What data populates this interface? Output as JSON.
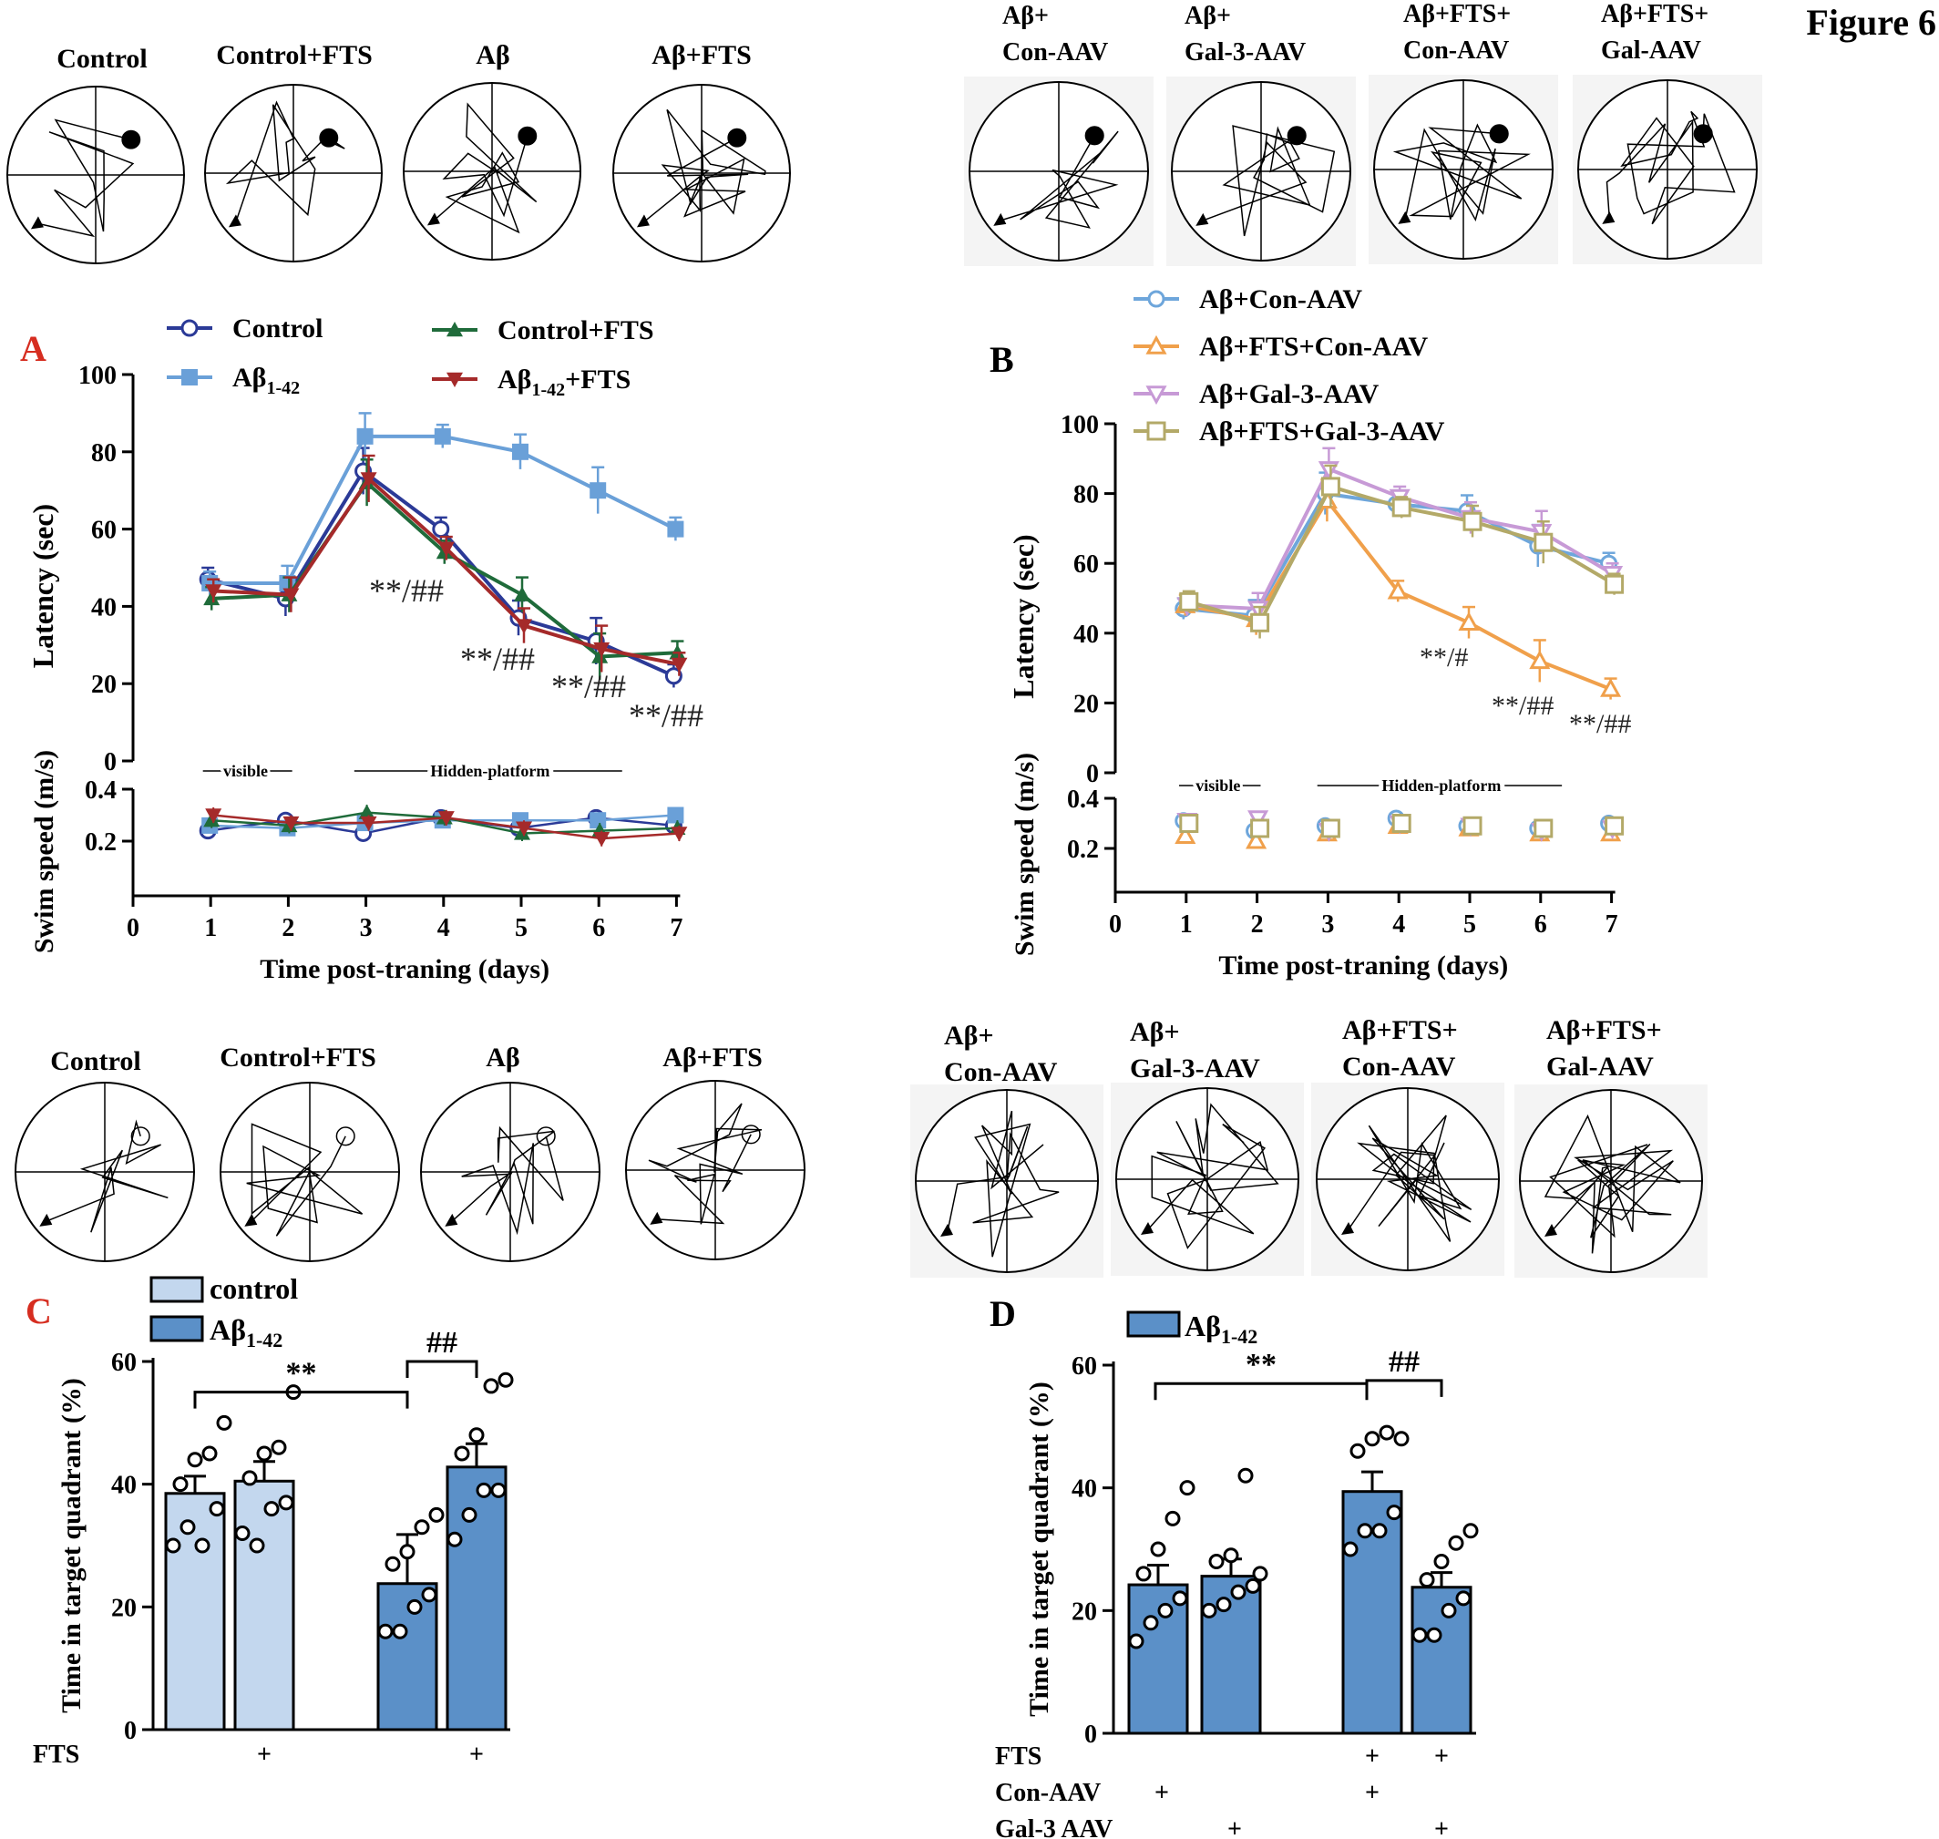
{
  "figure_label": "Figure 6",
  "colors": {
    "control": "#2b3a97",
    "abeta": "#6aa0d8",
    "control_fts": "#1f6b3a",
    "abeta_fts": "#a52a2a",
    "b_con": "#6ea6db",
    "b_fts_con": "#f0a04b",
    "b_gal3": "#c79ad6",
    "b_fts_gal3": "#b3a968",
    "bar_light": "#c3d7ee",
    "bar_dark": "#5b90c8",
    "letter_red": "#d62d20"
  },
  "top_left_mazes": {
    "labels": [
      "Control",
      "Control+FTS",
      "Aβ",
      "Aβ+FTS"
    ]
  },
  "top_right_mazes": {
    "labels_line1": [
      "Aβ+",
      "Aβ+",
      "Aβ+FTS+",
      "Aβ+FTS+"
    ],
    "labels_line2": [
      "Con-AAV",
      "Gal-3-AAV",
      "Con-AAV",
      "Gal-AAV"
    ]
  },
  "mid_left_mazes": {
    "labels": [
      "Control",
      "Control+FTS",
      "Aβ",
      "Aβ+FTS"
    ]
  },
  "mid_right_mazes": {
    "labels_line1": [
      "Aβ+",
      "Aβ+",
      "Aβ+FTS+",
      "Aβ+FTS+"
    ],
    "labels_line2": [
      "Con-AAV",
      "Gal-3-AAV",
      "Con-AAV",
      "Gal-AAV"
    ]
  },
  "panels": {
    "A": "A",
    "B": "B",
    "C": "C",
    "D": "D"
  },
  "chart_data": [
    {
      "id": "A",
      "type": "line",
      "xlabel": "Time post-traning (days)",
      "ylabel_top": "Latency (sec)",
      "ylabel_bottom": "Swim speed (m/s)",
      "x_ticks": [
        "0",
        "1",
        "2",
        "3",
        "4",
        "5",
        "6",
        "7"
      ],
      "ylim_top": [
        0,
        100
      ],
      "y_ticks_top": [
        "0",
        "20",
        "40",
        "60",
        "80",
        "100"
      ],
      "y_ticks_bottom": [
        "0.2",
        "0.4"
      ],
      "x": [
        1,
        2,
        3,
        4,
        5,
        6,
        7
      ],
      "legend": [
        "Control",
        "Aβ1-42",
        "Control+FTS",
        "Aβ1-42+FTS"
      ],
      "series": [
        {
          "name": "Control",
          "values": [
            47,
            42,
            75,
            60,
            37,
            31,
            22
          ],
          "speed": [
            0.24,
            0.28,
            0.23,
            0.29,
            0.25,
            0.29,
            0.26
          ]
        },
        {
          "name": "Aβ1-42",
          "values": [
            46,
            46,
            84,
            84,
            80,
            70,
            60
          ],
          "speed": [
            0.26,
            0.25,
            0.27,
            0.28,
            0.28,
            0.28,
            0.3
          ]
        },
        {
          "name": "Control+FTS",
          "values": [
            42,
            43,
            72,
            54,
            43,
            27,
            28
          ],
          "speed": [
            0.28,
            0.26,
            0.31,
            0.29,
            0.23,
            0.24,
            0.25
          ]
        },
        {
          "name": "Aβ1-42+FTS",
          "values": [
            44,
            43,
            73,
            55,
            35,
            29,
            25
          ],
          "speed": [
            0.3,
            0.27,
            0.27,
            0.29,
            0.25,
            0.21,
            0.23
          ]
        }
      ],
      "annotations": [
        "**/##",
        "**/##",
        "**/##",
        "**/##"
      ],
      "phase_labels": [
        "visible",
        "Hidden-platform"
      ]
    },
    {
      "id": "B",
      "type": "line",
      "xlabel": "Time post-traning (days)",
      "ylabel_top": "Latency (sec)",
      "ylabel_bottom": "Swim speed (m/s)",
      "x_ticks": [
        "0",
        "1",
        "2",
        "3",
        "4",
        "5",
        "6",
        "7"
      ],
      "ylim_top": [
        0,
        100
      ],
      "y_ticks_top": [
        "0",
        "20",
        "40",
        "60",
        "80",
        "100"
      ],
      "y_ticks_bottom": [
        "0.2",
        "0.4"
      ],
      "x": [
        1,
        2,
        3,
        4,
        5,
        6,
        7
      ],
      "legend": [
        "Aβ+Con-AAV",
        "Aβ+FTS+Con-AAV",
        "Aβ+Gal-3-AAV",
        "Aβ+FTS+Gal-3-AAV"
      ],
      "series": [
        {
          "name": "Aβ+Con-AAV",
          "values": [
            47,
            45,
            80,
            77,
            75,
            65,
            60
          ],
          "speed": [
            0.31,
            0.27,
            0.29,
            0.32,
            0.29,
            0.28,
            0.3
          ]
        },
        {
          "name": "Aβ+FTS+Con-AAV",
          "values": [
            48,
            44,
            78,
            52,
            43,
            32,
            24
          ],
          "speed": [
            0.25,
            0.23,
            0.26,
            0.29,
            0.28,
            0.26,
            0.26
          ]
        },
        {
          "name": "Aβ+Gal-3-AAV",
          "values": [
            48,
            47,
            87,
            79,
            73,
            69,
            57
          ],
          "speed": [
            0.31,
            0.32,
            0.27,
            0.3,
            0.29,
            0.27,
            0.28
          ]
        },
        {
          "name": "Aβ+FTS+Gal-3-AAV",
          "values": [
            49,
            43,
            82,
            76,
            72,
            66,
            54
          ],
          "speed": [
            0.3,
            0.28,
            0.28,
            0.3,
            0.29,
            0.28,
            0.29
          ]
        }
      ],
      "annotations": [
        "**/#",
        "**/##",
        "**/##"
      ],
      "phase_labels": [
        "visible",
        "Hidden-platform"
      ]
    },
    {
      "id": "C",
      "type": "bar",
      "ylabel": "Time in target quadrant (%)",
      "ylim": [
        0,
        60
      ],
      "y_ticks": [
        "0",
        "20",
        "40",
        "60"
      ],
      "legend": [
        "control",
        "Aβ1-42"
      ],
      "bars": [
        {
          "group": "control",
          "fts": "",
          "value": 38.5,
          "sem": 2.8,
          "points": [
            30,
            33,
            30,
            36,
            40,
            44,
            45,
            50
          ]
        },
        {
          "group": "control",
          "fts": "+",
          "value": 40.5,
          "sem": 3.2,
          "points": [
            32,
            30,
            36,
            37,
            41,
            45,
            46,
            55
          ]
        },
        {
          "group": "Aβ1-42",
          "fts": "",
          "value": 23.8,
          "sem": 8,
          "points": [
            16,
            16,
            20,
            22,
            27,
            29,
            33,
            35
          ]
        },
        {
          "group": "Aβ1-42",
          "fts": "+",
          "value": 42.8,
          "sem": 3.8,
          "points": [
            31,
            35,
            39,
            39,
            45,
            48,
            56,
            57
          ]
        }
      ],
      "row_label": "FTS",
      "significance": [
        "**",
        "##"
      ]
    },
    {
      "id": "D",
      "type": "bar",
      "ylabel": "Time in target quadrant (%)",
      "ylim": [
        0,
        60
      ],
      "y_ticks": [
        "0",
        "20",
        "40",
        "60"
      ],
      "legend": [
        "Aβ1-42"
      ],
      "bars": [
        {
          "value": 24.2,
          "sem": 3.2,
          "points": [
            15,
            18,
            20,
            22,
            26,
            30,
            35,
            40
          ]
        },
        {
          "value": 25.6,
          "sem": 2.8,
          "points": [
            20,
            21,
            23,
            24,
            28,
            29,
            42,
            26
          ]
        },
        {
          "value": 39.4,
          "sem": 3.2,
          "points": [
            30,
            33,
            33,
            36,
            46,
            48,
            49,
            48
          ]
        },
        {
          "value": 23.8,
          "sem": 2.4,
          "points": [
            16,
            16,
            20,
            22,
            25,
            28,
            31,
            33
          ]
        }
      ],
      "row_labels": [
        "FTS",
        "Con-AAV",
        "Gal-3 AAV"
      ],
      "rows": [
        [
          "",
          "",
          "+",
          "+"
        ],
        [
          "+",
          "",
          "+",
          ""
        ],
        [
          "",
          "+",
          "",
          "+"
        ]
      ],
      "significance": [
        "**",
        "##"
      ]
    }
  ]
}
